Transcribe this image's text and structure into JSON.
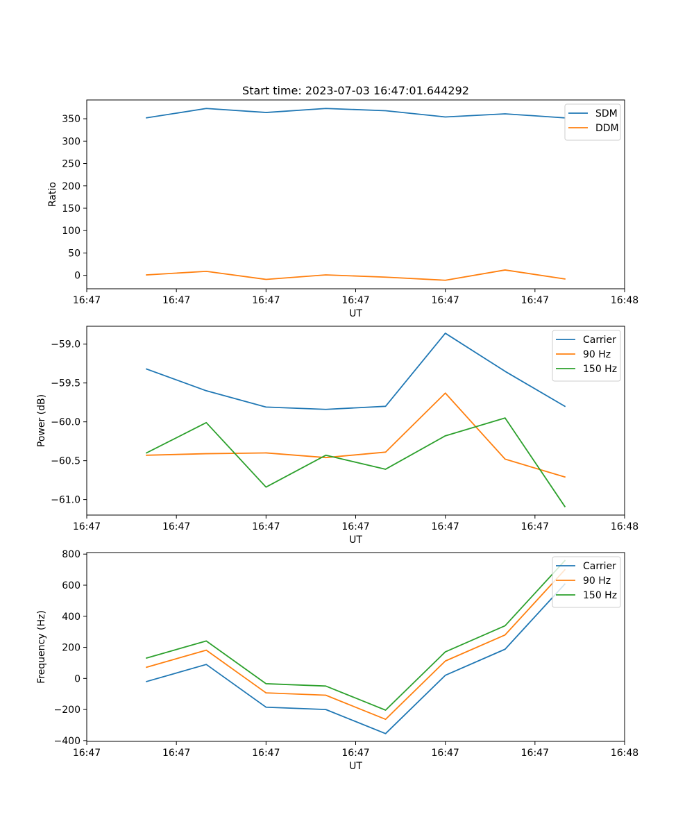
{
  "figure": {
    "title": "Start time: 2023-07-03 16:47:01.644292"
  },
  "chart_data": [
    {
      "type": "line",
      "title": "Start time: 2023-07-03 16:47:01.644292",
      "xlabel": "UT",
      "ylabel": "Ratio",
      "x_tick_labels": [
        "16:47",
        "16:47",
        "16:47",
        "16:47",
        "16:47",
        "16:47",
        "16:48"
      ],
      "x": [
        1,
        2,
        3,
        4,
        5,
        6,
        7,
        8
      ],
      "xlim": [
        0,
        9
      ],
      "x_ticks": [
        0,
        1.5,
        3,
        4.5,
        6,
        7.5,
        9
      ],
      "ylim": [
        -30,
        392
      ],
      "y_ticks": [
        0,
        50,
        100,
        150,
        200,
        250,
        300,
        350
      ],
      "y_tick_labels": [
        "0",
        "50",
        "100",
        "150",
        "200",
        "250",
        "300",
        "350"
      ],
      "legend": "top-right",
      "series": [
        {
          "name": "SDM",
          "color": "#1f77b4",
          "values": [
            352,
            373,
            364,
            373,
            368,
            354,
            361,
            352
          ]
        },
        {
          "name": "DDM",
          "color": "#ff7f0e",
          "values": [
            1,
            9,
            -9,
            1,
            -4,
            -11,
            12,
            -8
          ]
        }
      ]
    },
    {
      "type": "line",
      "xlabel": "UT",
      "ylabel": "Power (dB)",
      "x_tick_labels": [
        "16:47",
        "16:47",
        "16:47",
        "16:47",
        "16:47",
        "16:47",
        "16:48"
      ],
      "x": [
        1,
        2,
        3,
        4,
        5,
        6,
        7,
        8
      ],
      "xlim": [
        0,
        9
      ],
      "x_ticks": [
        0,
        1.5,
        3,
        4.5,
        6,
        7.5,
        9
      ],
      "ylim": [
        -61.2,
        -58.77
      ],
      "y_ticks": [
        -61.0,
        -60.5,
        -60.0,
        -59.5,
        -59.0
      ],
      "y_tick_labels": [
        "−61.0",
        "−60.5",
        "−60.0",
        "−59.5",
        "−59.0"
      ],
      "legend": "top-right",
      "series": [
        {
          "name": "Carrier",
          "color": "#1f77b4",
          "values": [
            -59.32,
            -59.6,
            -59.81,
            -59.84,
            -59.8,
            -58.86,
            -59.35,
            -59.8
          ]
        },
        {
          "name": "90 Hz",
          "color": "#ff7f0e",
          "values": [
            -60.43,
            -60.41,
            -60.4,
            -60.46,
            -60.39,
            -59.63,
            -60.48,
            -60.71
          ]
        },
        {
          "name": "150 Hz",
          "color": "#2ca02c",
          "values": [
            -60.4,
            -60.01,
            -60.84,
            -60.43,
            -60.61,
            -60.18,
            -59.95,
            -61.09
          ]
        }
      ]
    },
    {
      "type": "line",
      "xlabel": "UT",
      "ylabel": "Frequency (Hz)",
      "x_tick_labels": [
        "16:47",
        "16:47",
        "16:47",
        "16:47",
        "16:47",
        "16:47",
        "16:48"
      ],
      "x": [
        1,
        2,
        3,
        4,
        5,
        6,
        7,
        8
      ],
      "xlim": [
        0,
        9
      ],
      "x_ticks": [
        0,
        1.5,
        3,
        4.5,
        6,
        7.5,
        9
      ],
      "ylim": [
        -405,
        810
      ],
      "y_ticks": [
        -400,
        -200,
        0,
        200,
        400,
        600,
        800
      ],
      "y_tick_labels": [
        "−400",
        "−200",
        "0",
        "200",
        "400",
        "600",
        "800"
      ],
      "legend": "top-right",
      "series": [
        {
          "name": "Carrier",
          "color": "#1f77b4",
          "values": [
            -20,
            90,
            -185,
            -200,
            -355,
            20,
            188,
            607
          ]
        },
        {
          "name": "90 Hz",
          "color": "#ff7f0e",
          "values": [
            72,
            182,
            -93,
            -108,
            -263,
            112,
            280,
            699
          ]
        },
        {
          "name": "150 Hz",
          "color": "#2ca02c",
          "values": [
            131,
            241,
            -34,
            -49,
            -204,
            171,
            339,
            758
          ]
        }
      ]
    }
  ]
}
